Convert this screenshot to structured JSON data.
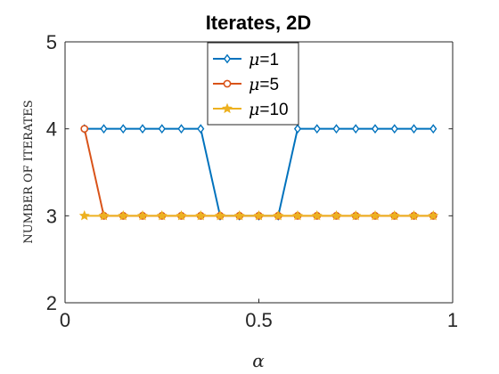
{
  "chart_data": {
    "type": "line",
    "title": "Iterates, 2D",
    "xlabel": "α",
    "ylabel": "NUMBER OF ITERATES",
    "xlim": [
      0,
      1
    ],
    "ylim": [
      2,
      5
    ],
    "xticks": [
      0,
      0.5,
      1
    ],
    "xtick_labels": [
      "0",
      "0.5",
      "1"
    ],
    "yticks": [
      2,
      3,
      4,
      5
    ],
    "ytick_labels": [
      "2",
      "3",
      "4",
      "5"
    ],
    "grid": false,
    "legend_position": "top-center",
    "x": [
      0.05,
      0.1,
      0.15,
      0.2,
      0.25,
      0.3,
      0.35,
      0.4,
      0.45,
      0.5,
      0.55,
      0.6,
      0.65,
      0.7,
      0.75,
      0.8,
      0.85,
      0.9,
      0.95
    ],
    "series": [
      {
        "name": "μ=1",
        "legend_symbol": "μ",
        "legend_value": "=1",
        "color": "#0072BD",
        "marker": "diamond",
        "values": [
          4,
          4,
          4,
          4,
          4,
          4,
          4,
          3,
          3,
          3,
          3,
          4,
          4,
          4,
          4,
          4,
          4,
          4,
          4
        ]
      },
      {
        "name": "μ=5",
        "legend_symbol": "μ",
        "legend_value": "=5",
        "color": "#D95319",
        "marker": "circle",
        "values": [
          4,
          3,
          3,
          3,
          3,
          3,
          3,
          3,
          3,
          3,
          3,
          3,
          3,
          3,
          3,
          3,
          3,
          3,
          3
        ]
      },
      {
        "name": "μ=10",
        "legend_symbol": "μ",
        "legend_value": "=10",
        "color": "#EDB120",
        "marker": "star",
        "values": [
          3,
          3,
          3,
          3,
          3,
          3,
          3,
          3,
          3,
          3,
          3,
          3,
          3,
          3,
          3,
          3,
          3,
          3,
          3
        ]
      }
    ]
  }
}
